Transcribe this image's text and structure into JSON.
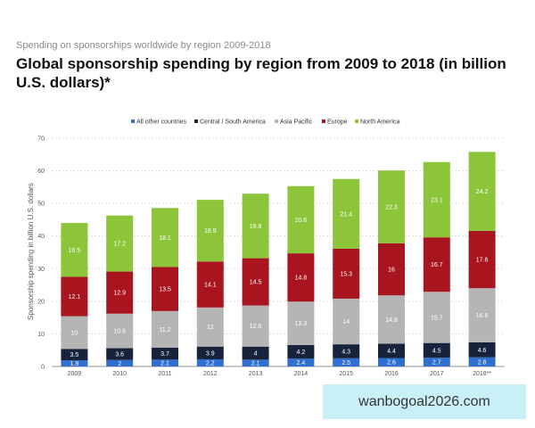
{
  "header": {
    "subtitle": "Spending on sponsorships worldwide by region 2009-2018",
    "title": "Global sponsorship spending by region from 2009 to 2018 (in billion U.S. dollars)*"
  },
  "watermark": "wanbogoal2026.com",
  "chart_data": {
    "type": "bar",
    "stacked": true,
    "title": "Global sponsorship spending by region from 2009 to 2018 (in billion U.S. dollars)*",
    "ylabel": "Sponsorship spending in billion U.S. dollars",
    "xlabel": "",
    "ylim": [
      0,
      70
    ],
    "yticks": [
      0,
      10,
      20,
      30,
      40,
      50,
      60,
      70
    ],
    "grid": true,
    "legend_position": "top",
    "categories": [
      "2009",
      "2010",
      "2011",
      "2012",
      "2013",
      "2014",
      "2015",
      "2016",
      "2017",
      "2018**"
    ],
    "series": [
      {
        "name": "All other countries",
        "color": "#2f6fd0",
        "values": [
          1.9,
          2,
          2.1,
          2.2,
          2.1,
          2.4,
          2.5,
          2.6,
          2.7,
          2.8
        ]
      },
      {
        "name": "Central / South America",
        "color": "#16233a",
        "values": [
          3.5,
          3.6,
          3.7,
          3.9,
          4,
          4.2,
          4.3,
          4.4,
          4.5,
          4.6
        ]
      },
      {
        "name": "Asia Pacific",
        "color": "#b5b5b5",
        "values": [
          10,
          10.6,
          11.2,
          12,
          12.6,
          13.3,
          14,
          14.8,
          15.7,
          16.6
        ]
      },
      {
        "name": "Europe",
        "color": "#a8151f",
        "values": [
          12.1,
          12.9,
          13.5,
          14.1,
          14.5,
          14.8,
          15.3,
          16,
          16.7,
          17.6
        ]
      },
      {
        "name": "North America",
        "color": "#8cc43a",
        "values": [
          16.5,
          17.2,
          18.1,
          18.9,
          19.8,
          20.6,
          21.4,
          22.3,
          23.1,
          24.2
        ]
      }
    ]
  }
}
